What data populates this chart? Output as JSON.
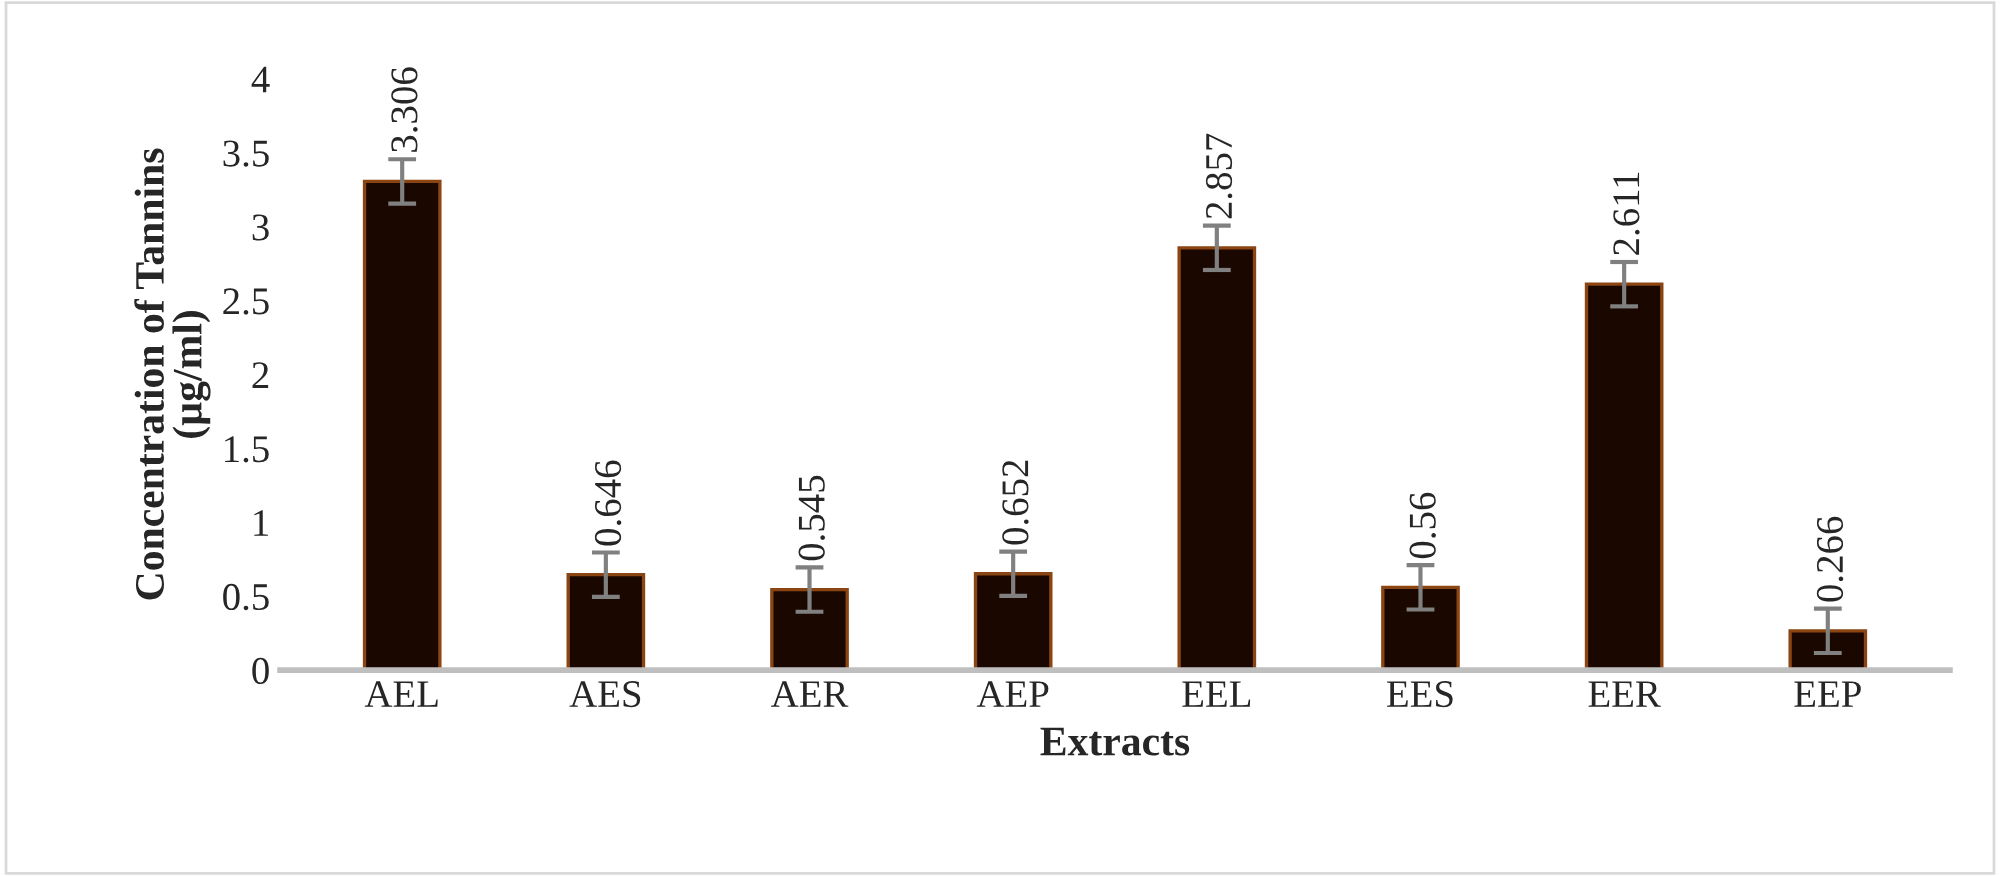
{
  "chart_data": {
    "type": "bar",
    "xlabel": "Extracts",
    "ylabel": "Concentration of Tannins\n(µg/ml)",
    "categories": [
      "AEL",
      "AES",
      "AER",
      "AEP",
      "EEL",
      "EES",
      "EER",
      "EEP"
    ],
    "values": [
      3.306,
      0.646,
      0.545,
      0.652,
      2.857,
      0.56,
      2.611,
      0.266
    ],
    "errors": [
      0.15,
      0.15,
      0.15,
      0.15,
      0.15,
      0.15,
      0.15,
      0.15
    ],
    "value_labels": [
      "3.306",
      "0.646",
      "0.545",
      "0.652",
      "2.857",
      "0.56",
      "2.611",
      "0.266"
    ],
    "color": "#1a0800",
    "ylim": [
      0,
      4
    ],
    "yticks": [
      0,
      0.5,
      1,
      1.5,
      2,
      2.5,
      3,
      3.5,
      4
    ],
    "grid": false,
    "legend": false
  }
}
